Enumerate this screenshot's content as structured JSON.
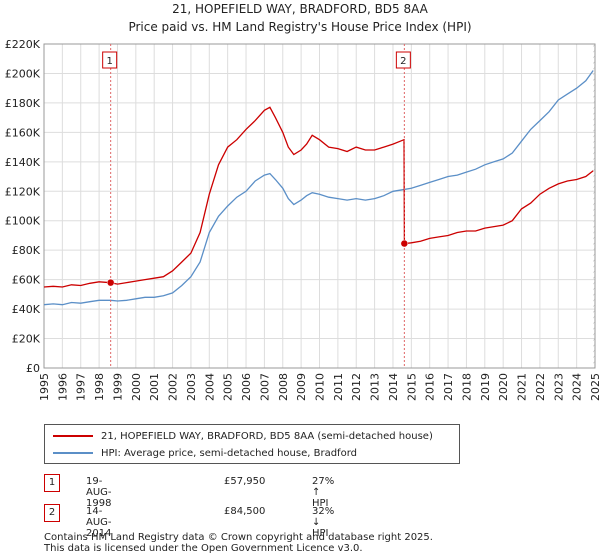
{
  "title_line1": "21, HOPEFIELD WAY, BRADFORD, BD5 8AA",
  "title_line2": "Price paid vs. HM Land Registry's House Price Index (HPI)",
  "colors": {
    "property": "#cc0000",
    "hpi": "#5b8fc7",
    "marker_line": "#e06666",
    "grid": "#dddddd",
    "future_hatch": "#bbbbbb"
  },
  "chart_data": {
    "type": "line",
    "title": "21, HOPEFIELD WAY, BRADFORD, BD5 8AA — Price paid vs. HM Land Registry's House Price Index (HPI)",
    "xlabel": "",
    "ylabel": "",
    "xlim": [
      1995,
      2025
    ],
    "ylim": [
      0,
      220000
    ],
    "y_ticks": [
      0,
      20000,
      40000,
      60000,
      80000,
      100000,
      120000,
      140000,
      160000,
      180000,
      200000,
      220000
    ],
    "y_tick_labels": [
      "£0",
      "£20K",
      "£40K",
      "£60K",
      "£80K",
      "£100K",
      "£120K",
      "£140K",
      "£160K",
      "£180K",
      "£200K",
      "£220K"
    ],
    "x_ticks": [
      1995,
      1996,
      1997,
      1998,
      1999,
      2000,
      2001,
      2002,
      2003,
      2004,
      2005,
      2006,
      2007,
      2008,
      2009,
      2010,
      2011,
      2012,
      2013,
      2014,
      2015,
      2016,
      2017,
      2018,
      2019,
      2020,
      2021,
      2022,
      2023,
      2024,
      2025
    ],
    "x_tick_labels": [
      "1995",
      "1996",
      "1997",
      "1998",
      "1999",
      "2000",
      "2001",
      "2002",
      "2003",
      "2004",
      "2005",
      "2006",
      "2007",
      "2008",
      "2009",
      "2010",
      "2011",
      "2012",
      "2013",
      "2014",
      "2015",
      "2016",
      "2017",
      "2018",
      "2019",
      "2020",
      "2021",
      "2022",
      "2023",
      "2024",
      "2025"
    ],
    "grid": true,
    "series": [
      {
        "name": "21, HOPEFIELD WAY, BRADFORD, BD5 8AA (semi-detached house)",
        "x": [
          1995,
          1995.5,
          1996,
          1996.5,
          1997,
          1997.5,
          1998,
          1998.63,
          1999,
          1999.5,
          2000,
          2000.5,
          2001,
          2001.5,
          2002,
          2002.5,
          2003,
          2003.5,
          2004,
          2004.5,
          2005,
          2005.5,
          2006,
          2006.5,
          2007,
          2007.3,
          2007.6,
          2008,
          2008.3,
          2008.6,
          2009,
          2009.3,
          2009.6,
          2010,
          2010.5,
          2011,
          2011.5,
          2012,
          2012.5,
          2013,
          2013.5,
          2014,
          2014.4,
          2014.6,
          2014.62,
          2015,
          2015.5,
          2016,
          2016.5,
          2017,
          2017.5,
          2018,
          2018.5,
          2019,
          2019.5,
          2020,
          2020.5,
          2021,
          2021.5,
          2022,
          2022.5,
          2023,
          2023.5,
          2024,
          2024.5,
          2024.9
        ],
        "values": [
          55000,
          55500,
          55000,
          56500,
          56000,
          57500,
          58500,
          57950,
          57000,
          58000,
          59000,
          60000,
          61000,
          62000,
          66000,
          72000,
          78000,
          92000,
          118000,
          138000,
          150000,
          155000,
          162000,
          168000,
          175000,
          177000,
          170000,
          160000,
          150000,
          145000,
          148000,
          152000,
          158000,
          155000,
          150000,
          149000,
          147000,
          150000,
          148000,
          148000,
          150000,
          152000,
          154000,
          155000,
          84500,
          85000,
          86000,
          88000,
          89000,
          90000,
          92000,
          93000,
          93000,
          95000,
          96000,
          97000,
          100000,
          108000,
          112000,
          118000,
          122000,
          125000,
          127000,
          128000,
          130000,
          134000
        ]
      },
      {
        "name": "HPI: Average price, semi-detached house, Bradford",
        "x": [
          1995,
          1995.5,
          1996,
          1996.5,
          1997,
          1997.5,
          1998,
          1998.63,
          1999,
          1999.5,
          2000,
          2000.5,
          2001,
          2001.5,
          2002,
          2002.5,
          2003,
          2003.5,
          2004,
          2004.5,
          2005,
          2005.5,
          2006,
          2006.5,
          2007,
          2007.3,
          2007.6,
          2008,
          2008.3,
          2008.6,
          2009,
          2009.3,
          2009.6,
          2010,
          2010.5,
          2011,
          2011.5,
          2012,
          2012.5,
          2013,
          2013.5,
          2014,
          2014.5,
          2015,
          2015.5,
          2016,
          2016.5,
          2017,
          2017.5,
          2018,
          2018.5,
          2019,
          2019.5,
          2020,
          2020.5,
          2021,
          2021.5,
          2022,
          2022.5,
          2023,
          2023.5,
          2024,
          2024.5,
          2024.9
        ],
        "values": [
          43000,
          43500,
          43000,
          44500,
          44000,
          45000,
          46000,
          46000,
          45500,
          46000,
          47000,
          48000,
          48000,
          49000,
          51000,
          56000,
          62000,
          72000,
          92000,
          103000,
          110000,
          116000,
          120000,
          127000,
          131000,
          132000,
          128000,
          122000,
          115000,
          111000,
          114000,
          117000,
          119000,
          118000,
          116000,
          115000,
          114000,
          115000,
          114000,
          115000,
          117000,
          120000,
          121000,
          122000,
          124000,
          126000,
          128000,
          130000,
          131000,
          133000,
          135000,
          138000,
          140000,
          142000,
          146000,
          154000,
          162000,
          168000,
          174000,
          182000,
          186000,
          190000,
          195000,
          202000
        ]
      }
    ],
    "annotations": [
      {
        "label": "1",
        "x": 1998.63,
        "y": 57950
      },
      {
        "label": "2",
        "x": 2014.62,
        "y": 84500
      }
    ]
  },
  "legend": {
    "property_label": "21, HOPEFIELD WAY, BRADFORD, BD5 8AA (semi-detached house)",
    "hpi_label": "HPI: Average price, semi-detached house, Bradford"
  },
  "sales": [
    {
      "num": "1",
      "date": "19-AUG-1998",
      "price": "£57,950",
      "hpi_diff": "27% ↑ HPI"
    },
    {
      "num": "2",
      "date": "14-AUG-2014",
      "price": "£84,500",
      "hpi_diff": "32% ↓ HPI"
    }
  ],
  "footer": {
    "line1": "Contains HM Land Registry data © Crown copyright and database right 2025.",
    "line2": "This data is licensed under the Open Government Licence v3.0."
  }
}
